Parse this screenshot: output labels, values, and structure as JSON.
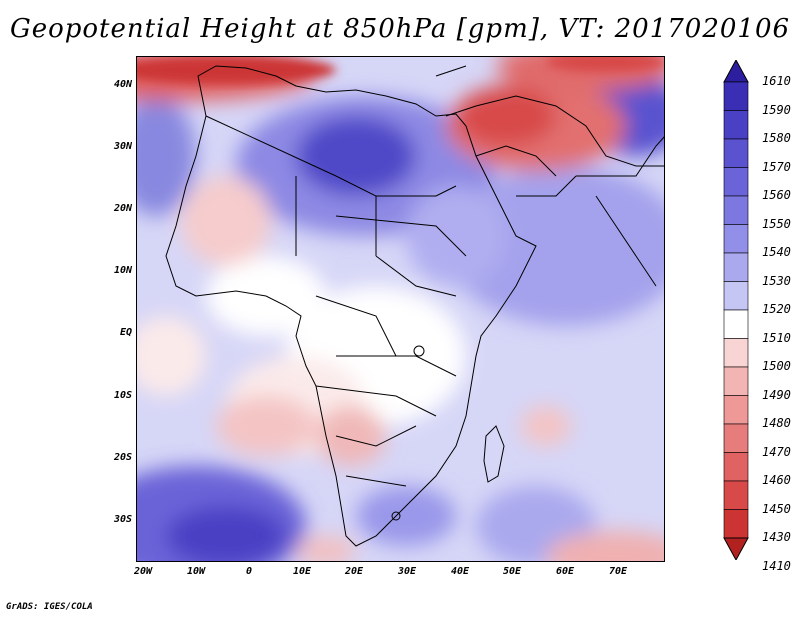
{
  "title": "Geopotential Height at 850hPa [gpm], VT: 2017020106",
  "credit": "GrADS: IGES/COLA",
  "map": {
    "lat_labels": [
      "40N",
      "30N",
      "20N",
      "10N",
      "EQ",
      "10S",
      "20S",
      "30S"
    ],
    "lon_labels": [
      "20W",
      "10W",
      "0",
      "10E",
      "20E",
      "30E",
      "40E",
      "50E",
      "60E",
      "70E"
    ]
  },
  "colorbar": {
    "labels": [
      "1610",
      "1590",
      "1580",
      "1570",
      "1560",
      "1550",
      "1540",
      "1530",
      "1520",
      "1510",
      "1500",
      "1490",
      "1480",
      "1470",
      "1460",
      "1450",
      "1430",
      "1410"
    ],
    "colors": [
      "#2c1e9e",
      "#3a2eb4",
      "#4a40c4",
      "#5a52cf",
      "#6a64d8",
      "#7c78e0",
      "#918fe7",
      "#aaa9ee",
      "#c6c6f5",
      "#ffffff",
      "#f9d4d4",
      "#f3b4b4",
      "#ee9898",
      "#e77c7c",
      "#e06262",
      "#d84a4a",
      "#cc3434",
      "#b22020"
    ]
  }
}
